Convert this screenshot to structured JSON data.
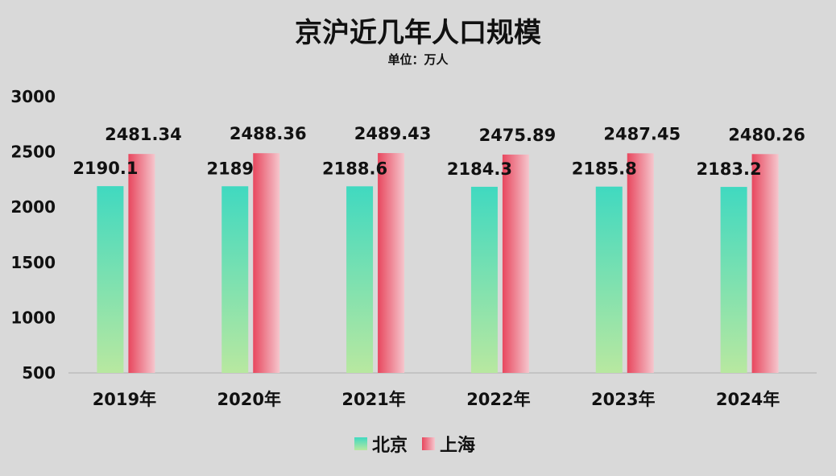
{
  "chart_data": {
    "type": "bar",
    "title": "京沪近几年人口规模",
    "subtitle": "单位：万人",
    "categories": [
      "2019年",
      "2020年",
      "2021年",
      "2022年",
      "2023年",
      "2024年"
    ],
    "series": [
      {
        "name": "北京",
        "values": [
          2190.1,
          2189,
          2188.6,
          2184.3,
          2185.8,
          2183.2
        ],
        "labels": [
          "2190.1",
          "2189",
          "2188.6",
          "2184.3",
          "2185.8",
          "2183.2"
        ],
        "color_top": "#40d9c0",
        "color_bottom": "#b8e8a0"
      },
      {
        "name": "上海",
        "values": [
          2481.34,
          2488.36,
          2489.43,
          2475.89,
          2487.45,
          2480.26
        ],
        "labels": [
          "2481.34",
          "2488.36",
          "2489.43",
          "2475.89",
          "2487.45",
          "2480.26"
        ],
        "color_dark": "#e8475e",
        "color_light": "#f5c6cd"
      }
    ],
    "yticks": [
      "3000",
      "2500",
      "2000",
      "1500",
      "1000",
      "500"
    ],
    "ylim": [
      500,
      3000
    ],
    "grid": false,
    "legend_position": "bottom"
  }
}
